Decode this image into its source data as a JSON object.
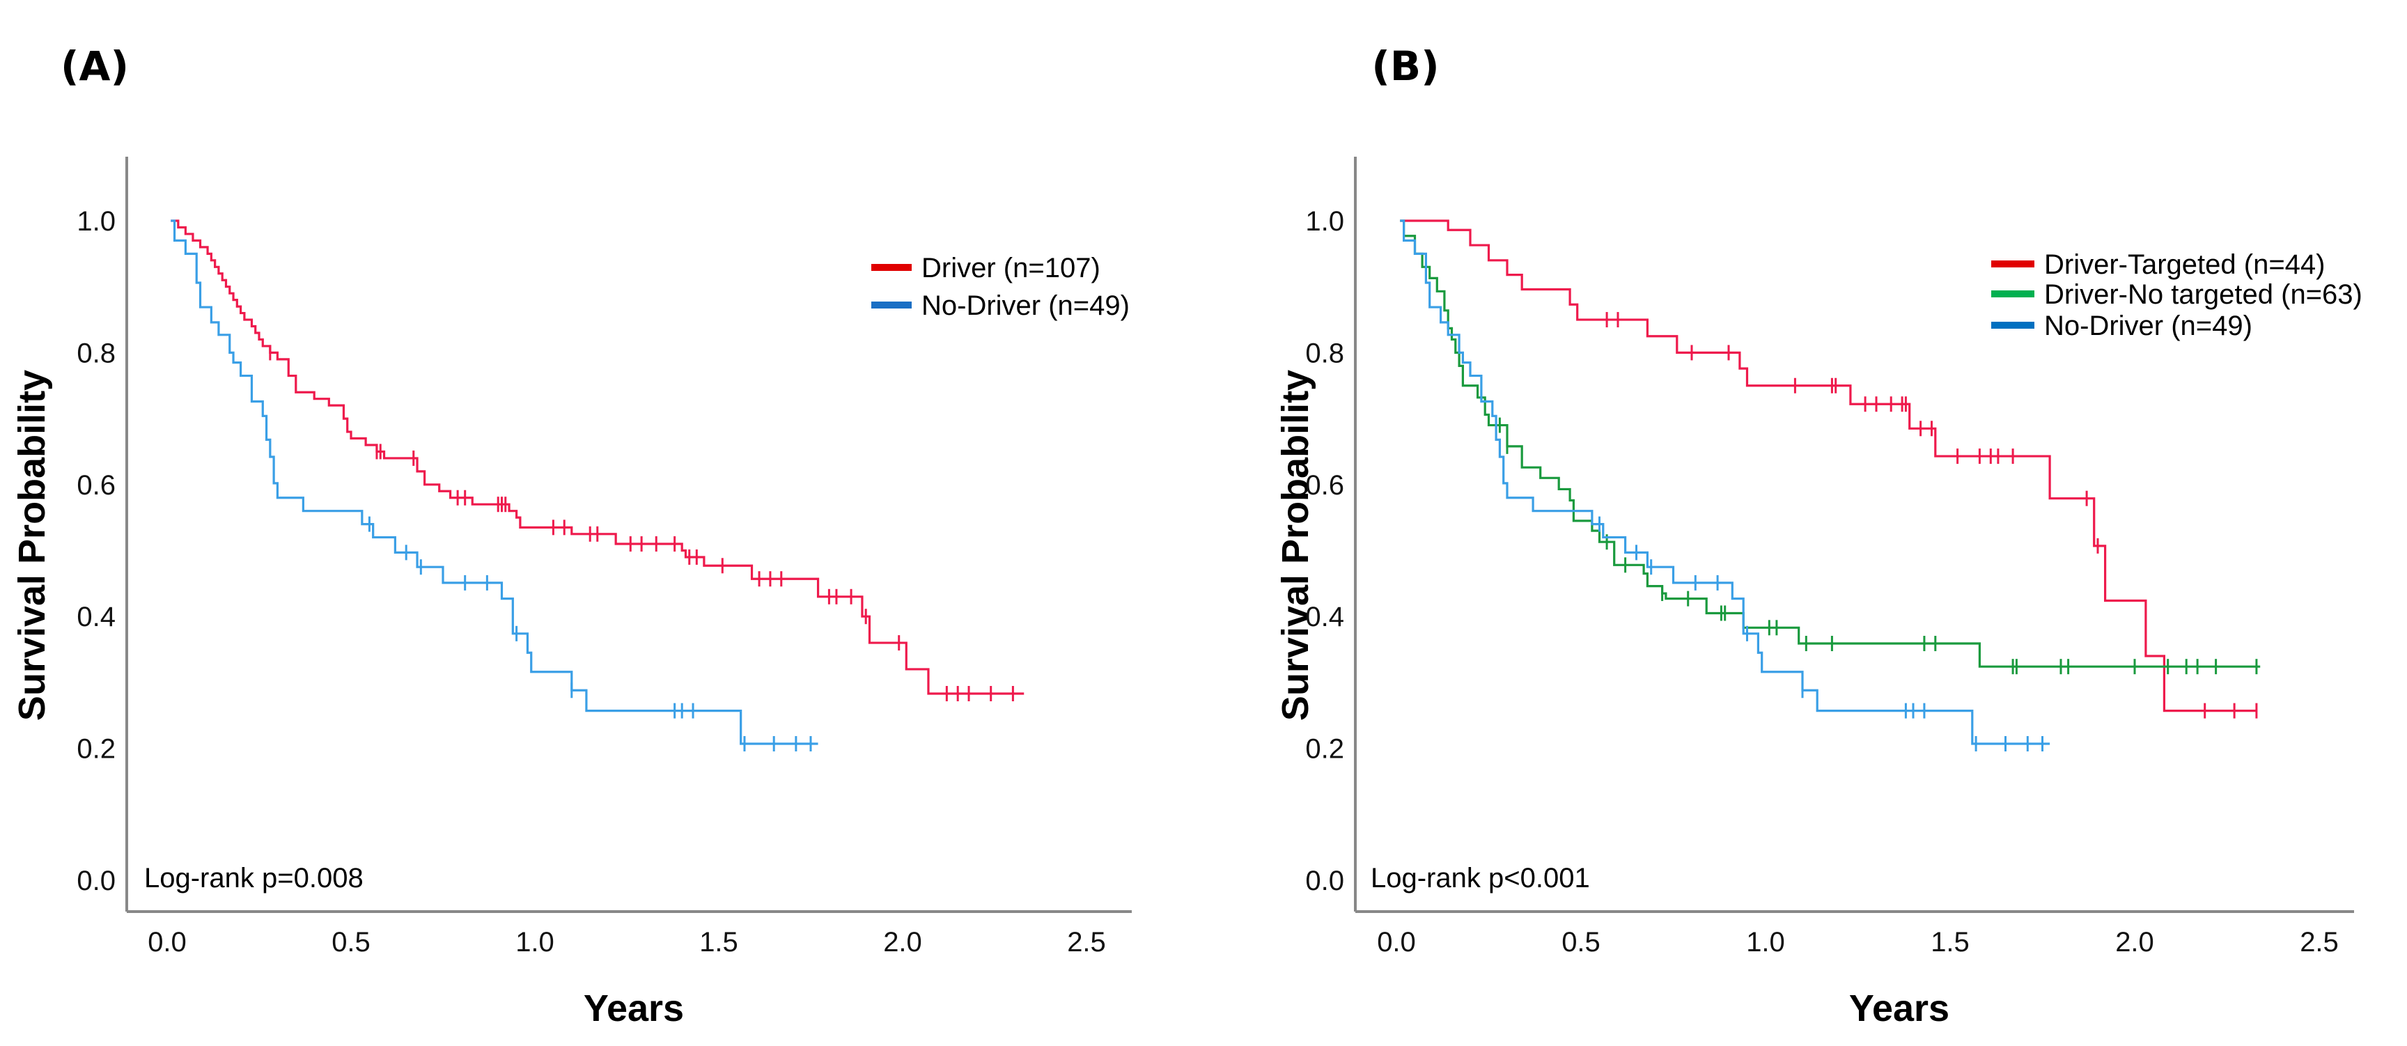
{
  "chart_data": [
    {
      "type": "line",
      "panel": "(A)",
      "title": "(A)",
      "xlabel": "Years",
      "ylabel": "Survival Probability",
      "xlim": [
        0,
        2.5
      ],
      "ylim": [
        0,
        1.0
      ],
      "xticks": [
        "0.0",
        "0.5",
        "1.0",
        "1.5",
        "2.0",
        "2.5"
      ],
      "yticks": [
        "0.0",
        "0.2",
        "0.4",
        "0.6",
        "0.8",
        "1.0"
      ],
      "grid": false,
      "legend_position": "top-right",
      "annotation": "Log-rank p=0.008",
      "series": [
        {
          "name": "Driver (n=107)",
          "color": "#ee1a4c",
          "legend_color": "#e00000",
          "end": 2.33,
          "steps": [
            [
              0.03,
              0.99
            ],
            [
              0.05,
              0.98
            ],
            [
              0.07,
              0.97
            ],
            [
              0.09,
              0.96
            ],
            [
              0.11,
              0.95
            ],
            [
              0.12,
              0.94
            ],
            [
              0.13,
              0.93
            ],
            [
              0.14,
              0.92
            ],
            [
              0.15,
              0.91
            ],
            [
              0.16,
              0.9
            ],
            [
              0.17,
              0.89
            ],
            [
              0.18,
              0.88
            ],
            [
              0.19,
              0.87
            ],
            [
              0.2,
              0.86
            ],
            [
              0.21,
              0.85
            ],
            [
              0.23,
              0.84
            ],
            [
              0.24,
              0.83
            ],
            [
              0.25,
              0.82
            ],
            [
              0.26,
              0.81
            ],
            [
              0.28,
              0.8
            ],
            [
              0.3,
              0.79
            ],
            [
              0.33,
              0.765
            ],
            [
              0.35,
              0.74
            ],
            [
              0.4,
              0.73
            ],
            [
              0.44,
              0.72
            ],
            [
              0.48,
              0.7
            ],
            [
              0.49,
              0.68
            ],
            [
              0.5,
              0.67
            ],
            [
              0.54,
              0.66
            ],
            [
              0.57,
              0.65
            ],
            [
              0.59,
              0.64
            ],
            [
              0.68,
              0.62
            ],
            [
              0.7,
              0.6
            ],
            [
              0.74,
              0.59
            ],
            [
              0.77,
              0.58
            ],
            [
              0.83,
              0.57
            ],
            [
              0.93,
              0.56
            ],
            [
              0.95,
              0.55
            ],
            [
              0.96,
              0.535
            ],
            [
              1.1,
              0.525
            ],
            [
              1.22,
              0.51
            ],
            [
              1.4,
              0.5
            ],
            [
              1.41,
              0.49
            ],
            [
              1.46,
              0.477
            ],
            [
              1.59,
              0.457
            ],
            [
              1.77,
              0.43
            ],
            [
              1.89,
              0.4
            ],
            [
              1.91,
              0.36
            ],
            [
              2.01,
              0.32
            ],
            [
              2.07,
              0.283
            ]
          ],
          "censored": [
            0.28,
            0.57,
            0.58,
            0.67,
            0.79,
            0.81,
            0.9,
            0.91,
            0.92,
            1.05,
            1.08,
            1.15,
            1.17,
            1.26,
            1.29,
            1.33,
            1.38,
            1.42,
            1.44,
            1.51,
            1.61,
            1.64,
            1.67,
            1.8,
            1.82,
            1.86,
            1.9,
            1.99,
            2.12,
            2.15,
            2.18,
            2.24,
            2.3
          ]
        },
        {
          "name": "No-Driver (n=49)",
          "color": "#3a9fe6",
          "legend_color": "#1a6fc4",
          "end": 1.77,
          "steps": [
            [
              0.02,
              0.97
            ],
            [
              0.05,
              0.95
            ],
            [
              0.08,
              0.906
            ],
            [
              0.09,
              0.869
            ],
            [
              0.12,
              0.846
            ],
            [
              0.14,
              0.827
            ],
            [
              0.17,
              0.8
            ],
            [
              0.18,
              0.785
            ],
            [
              0.2,
              0.765
            ],
            [
              0.23,
              0.726
            ],
            [
              0.26,
              0.704
            ],
            [
              0.27,
              0.668
            ],
            [
              0.28,
              0.642
            ],
            [
              0.29,
              0.602
            ],
            [
              0.3,
              0.58
            ],
            [
              0.37,
              0.56
            ],
            [
              0.53,
              0.54
            ],
            [
              0.56,
              0.52
            ],
            [
              0.62,
              0.497
            ],
            [
              0.68,
              0.475
            ],
            [
              0.75,
              0.451
            ],
            [
              0.91,
              0.427
            ],
            [
              0.94,
              0.374
            ],
            [
              0.98,
              0.345
            ],
            [
              0.99,
              0.316
            ],
            [
              1.1,
              0.288
            ],
            [
              1.14,
              0.257
            ],
            [
              1.56,
              0.207
            ]
          ],
          "censored": [
            0.55,
            0.65,
            0.69,
            0.81,
            0.87,
            0.95,
            1.1,
            1.38,
            1.4,
            1.43,
            1.57,
            1.65,
            1.71,
            1.75
          ]
        }
      ]
    },
    {
      "type": "line",
      "panel": "(B)",
      "title": "(B)",
      "xlabel": "Years",
      "ylabel": "Survival Probability",
      "xlim": [
        0,
        2.5
      ],
      "ylim": [
        0,
        1.0
      ],
      "xticks": [
        "0.0",
        "0.5",
        "1.0",
        "1.5",
        "2.0",
        "2.5"
      ],
      "yticks": [
        "0.0",
        "0.2",
        "0.4",
        "0.6",
        "0.8",
        "1.0"
      ],
      "grid": false,
      "legend_position": "top-right",
      "annotation": "Log-rank p<0.001",
      "series": [
        {
          "name": "Driver-Targeted (n=44)",
          "color": "#ee1a4c",
          "legend_color": "#e00000",
          "end": 2.33,
          "steps": [
            [
              0.14,
              0.986
            ],
            [
              0.2,
              0.963
            ],
            [
              0.25,
              0.94
            ],
            [
              0.3,
              0.918
            ],
            [
              0.34,
              0.896
            ],
            [
              0.47,
              0.873
            ],
            [
              0.49,
              0.85
            ],
            [
              0.68,
              0.825
            ],
            [
              0.76,
              0.8
            ],
            [
              0.93,
              0.776
            ],
            [
              0.95,
              0.75
            ],
            [
              1.23,
              0.722
            ],
            [
              1.39,
              0.685
            ],
            [
              1.46,
              0.643
            ],
            [
              1.77,
              0.579
            ],
            [
              1.89,
              0.507
            ],
            [
              1.92,
              0.424
            ],
            [
              2.03,
              0.34
            ],
            [
              2.08,
              0.257
            ]
          ],
          "censored": [
            0.57,
            0.6,
            0.8,
            0.9,
            1.08,
            1.18,
            1.19,
            1.27,
            1.3,
            1.34,
            1.37,
            1.38,
            1.42,
            1.45,
            1.52,
            1.58,
            1.61,
            1.63,
            1.67,
            1.87,
            1.9,
            2.19,
            2.27,
            2.33
          ]
        },
        {
          "name": "Driver-No targeted (n=63)",
          "color": "#1a9a3e",
          "legend_color": "#00b050",
          "end": 2.34,
          "steps": [
            [
              0.02,
              0.977
            ],
            [
              0.05,
              0.95
            ],
            [
              0.07,
              0.93
            ],
            [
              0.09,
              0.913
            ],
            [
              0.11,
              0.893
            ],
            [
              0.13,
              0.864
            ],
            [
              0.14,
              0.837
            ],
            [
              0.15,
              0.82
            ],
            [
              0.16,
              0.8
            ],
            [
              0.17,
              0.78
            ],
            [
              0.18,
              0.75
            ],
            [
              0.22,
              0.732
            ],
            [
              0.24,
              0.706
            ],
            [
              0.25,
              0.69
            ],
            [
              0.3,
              0.658
            ],
            [
              0.34,
              0.626
            ],
            [
              0.39,
              0.61
            ],
            [
              0.44,
              0.593
            ],
            [
              0.47,
              0.576
            ],
            [
              0.48,
              0.545
            ],
            [
              0.53,
              0.53
            ],
            [
              0.55,
              0.513
            ],
            [
              0.59,
              0.478
            ],
            [
              0.67,
              0.465
            ],
            [
              0.68,
              0.446
            ],
            [
              0.72,
              0.435
            ],
            [
              0.73,
              0.427
            ],
            [
              0.84,
              0.405
            ],
            [
              0.94,
              0.383
            ],
            [
              1.09,
              0.359
            ],
            [
              1.58,
              0.324
            ]
          ],
          "censored": [
            0.28,
            0.3,
            0.57,
            0.62,
            0.72,
            0.79,
            0.88,
            0.89,
            1.01,
            1.03,
            1.11,
            1.18,
            1.43,
            1.46,
            1.67,
            1.68,
            1.8,
            1.82,
            2.0,
            2.09,
            2.14,
            2.17,
            2.22,
            2.33
          ]
        },
        {
          "name": "No-Driver (n=49)",
          "color": "#3a9fe6",
          "legend_color": "#0070c0",
          "end": 1.77,
          "steps": [
            [
              0.02,
              0.97
            ],
            [
              0.05,
              0.95
            ],
            [
              0.08,
              0.906
            ],
            [
              0.09,
              0.869
            ],
            [
              0.12,
              0.846
            ],
            [
              0.14,
              0.827
            ],
            [
              0.17,
              0.8
            ],
            [
              0.18,
              0.785
            ],
            [
              0.2,
              0.765
            ],
            [
              0.23,
              0.726
            ],
            [
              0.26,
              0.704
            ],
            [
              0.27,
              0.668
            ],
            [
              0.28,
              0.642
            ],
            [
              0.29,
              0.602
            ],
            [
              0.3,
              0.58
            ],
            [
              0.37,
              0.56
            ],
            [
              0.53,
              0.54
            ],
            [
              0.56,
              0.52
            ],
            [
              0.62,
              0.497
            ],
            [
              0.68,
              0.475
            ],
            [
              0.75,
              0.451
            ],
            [
              0.91,
              0.427
            ],
            [
              0.94,
              0.374
            ],
            [
              0.98,
              0.345
            ],
            [
              0.99,
              0.316
            ],
            [
              1.1,
              0.288
            ],
            [
              1.14,
              0.257
            ],
            [
              1.56,
              0.207
            ]
          ],
          "censored": [
            0.55,
            0.65,
            0.69,
            0.81,
            0.87,
            0.95,
            1.1,
            1.38,
            1.4,
            1.43,
            1.57,
            1.65,
            1.71,
            1.75
          ]
        }
      ]
    }
  ]
}
